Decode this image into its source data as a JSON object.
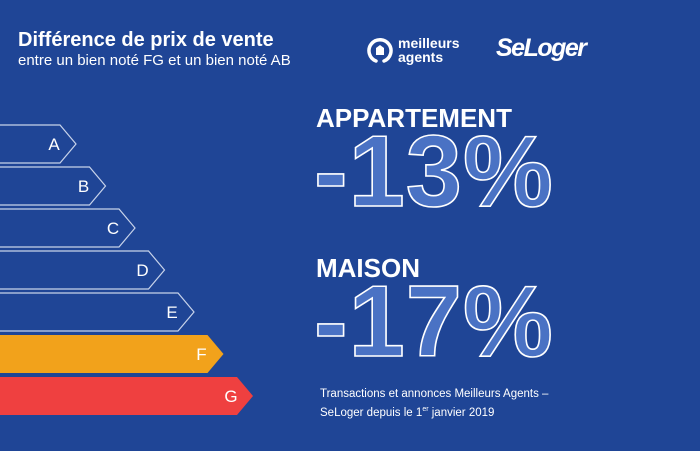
{
  "header": {
    "title": "Différence de prix de vente",
    "subtitle": "entre un bien noté FG et un bien noté AB"
  },
  "logos": {
    "meilleurs_agents": [
      "meilleurs",
      "agents"
    ],
    "seloger": "SeLoger"
  },
  "ratings": [
    {
      "label": "A",
      "style": "outline"
    },
    {
      "label": "B",
      "style": "outline"
    },
    {
      "label": "C",
      "style": "outline"
    },
    {
      "label": "D",
      "style": "outline"
    },
    {
      "label": "E",
      "style": "outline"
    },
    {
      "label": "F",
      "style": "filled",
      "color": "#f2a21b"
    },
    {
      "label": "G",
      "style": "filled",
      "color": "#ef4040"
    }
  ],
  "results": {
    "appartement": {
      "label": "APPARTEMENT",
      "value": "-13%"
    },
    "maison": {
      "label": "MAISON",
      "value": "-17%"
    }
  },
  "footnote": {
    "line1": "Transactions et annonces Meilleurs Agents –",
    "line2_pre": "SeLoger depuis le 1",
    "line2_sup": "er",
    "line2_post": " janvier 2019"
  },
  "colors": {
    "background": "#1f4596",
    "accent_f": "#f2a21b",
    "accent_g": "#ef4040"
  }
}
